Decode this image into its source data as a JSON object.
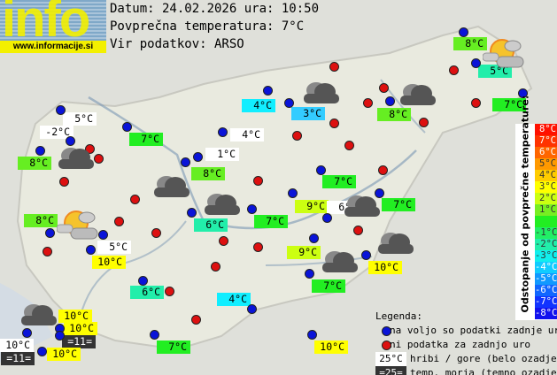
{
  "logo": {
    "text": "info",
    "url": "www.informacije.si"
  },
  "header": {
    "date_line": "Datum: 24.02.2026 ura: 10:50",
    "avg_temp_line": "Povprečna temperatura: 7°C",
    "source_line": "Vir podatkov: ARSO"
  },
  "colors": {
    "white": "#ffffff",
    "cyan": "#11eeff",
    "skyblue": "#33ccff",
    "teal": "#22eeaa",
    "green": "#22ee22",
    "lime": "#66ee22",
    "yellowgreen": "#ccff11",
    "yellow": "#ffff00",
    "dark": "#333333"
  },
  "stations": [
    {
      "t": "8°C",
      "c": "lime"
    },
    {
      "t": "5°C",
      "c": "teal"
    },
    {
      "t": "7°C",
      "c": "green"
    },
    {
      "t": "4°C",
      "c": "cyan"
    },
    {
      "t": "3°C",
      "c": "skyblue"
    },
    {
      "t": "8°C",
      "c": "lime"
    },
    {
      "t": "4°C",
      "c": "white"
    },
    {
      "t": "5°C",
      "c": "white"
    },
    {
      "t": "-2°C",
      "c": "white"
    },
    {
      "t": "7°C",
      "c": "green"
    },
    {
      "t": "1°C",
      "c": "white"
    },
    {
      "t": "8°C",
      "c": "lime"
    },
    {
      "t": "8°C",
      "c": "lime"
    },
    {
      "t": "7°C",
      "c": "green"
    },
    {
      "t": "8°C",
      "c": "lime"
    },
    {
      "t": "6°C",
      "c": "teal"
    },
    {
      "t": "7°C",
      "c": "green"
    },
    {
      "t": "9°C",
      "c": "yellowgreen"
    },
    {
      "t": "6°C",
      "c": "white"
    },
    {
      "t": "7°C",
      "c": "green"
    },
    {
      "t": "5°C",
      "c": "white"
    },
    {
      "t": "10°C",
      "c": "yellow"
    },
    {
      "t": "9°C",
      "c": "yellowgreen"
    },
    {
      "t": "10°C",
      "c": "yellow"
    },
    {
      "t": "7°C",
      "c": "green"
    },
    {
      "t": "6°C",
      "c": "teal"
    },
    {
      "t": "4°C",
      "c": "cyan"
    },
    {
      "t": "10°C",
      "c": "yellow"
    },
    {
      "t": "10°C",
      "c": "yellow"
    },
    {
      "t": "=11=",
      "c": "dark"
    },
    {
      "t": "10°C",
      "c": "white"
    },
    {
      "t": "=11=",
      "c": "dark"
    },
    {
      "t": "10°C",
      "c": "yellow"
    },
    {
      "t": "7°C",
      "c": "green"
    },
    {
      "t": "10°C",
      "c": "yellow"
    }
  ],
  "scale": {
    "title": "Odstopanje od povprečne temperature:",
    "rows": [
      {
        "t": "8°C",
        "c": "#ff1100"
      },
      {
        "t": "7°C",
        "c": "#ff3300"
      },
      {
        "t": "6°C",
        "c": "#ff6600"
      },
      {
        "t": "5°C",
        "c": "#ff9900"
      },
      {
        "t": "4°C",
        "c": "#ffcc00"
      },
      {
        "t": "3°C",
        "c": "#ffff00"
      },
      {
        "t": "2°C",
        "c": "#ccff11"
      },
      {
        "t": "1°C",
        "c": "#77ee22"
      },
      {
        "t": "",
        "c": "#22ee22"
      },
      {
        "t": "-1°C",
        "c": "#22ee66"
      },
      {
        "t": "-2°C",
        "c": "#22eeaa"
      },
      {
        "t": "-3°C",
        "c": "#11eeee"
      },
      {
        "t": "-4°C",
        "c": "#11ccff"
      },
      {
        "t": "-5°C",
        "c": "#1199ff"
      },
      {
        "t": "-6°C",
        "c": "#1166ff"
      },
      {
        "t": "-7°C",
        "c": "#1133ff"
      },
      {
        "t": "-8°C",
        "c": "#1111ee"
      }
    ]
  },
  "legend": {
    "title": "Legenda:",
    "blue_dot": "na voljo so podatki zadnje ure",
    "red_dot": "ni podatka za zadnjo uro",
    "mountain_sample": "25°C",
    "mountain_text": "hribi / gore (belo ozadje)",
    "sea_sample": "=25=",
    "sea_text": "temp. morja (temno ozadje)"
  }
}
